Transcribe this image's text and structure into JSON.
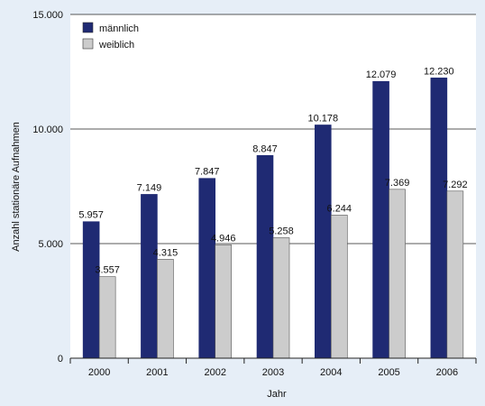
{
  "chart_data": {
    "type": "bar",
    "categories": [
      "2000",
      "2001",
      "2002",
      "2003",
      "2004",
      "2005",
      "2006"
    ],
    "series": [
      {
        "name": "männlich",
        "color": "#1f2a73",
        "values": [
          5957,
          7149,
          7847,
          8847,
          10178,
          12079,
          12230
        ],
        "labels": [
          "5.957",
          "7.149",
          "7.847",
          "8.847",
          "10.178",
          "12.079",
          "12.230"
        ]
      },
      {
        "name": "weiblich",
        "color": "#cccccc",
        "values": [
          3557,
          4315,
          4946,
          5258,
          6244,
          7369,
          7292
        ],
        "labels": [
          "3.557",
          "4.315",
          "4.946",
          "5.258",
          "6.244",
          "7.369",
          "7.292"
        ]
      }
    ],
    "xlabel": "Jahr",
    "ylabel": "Anzahl stationäre Aufnahmen",
    "ylim": [
      0,
      15000
    ],
    "yticks": [
      0,
      5000,
      10000,
      15000
    ],
    "ytick_labels": [
      "0",
      "5.000",
      "10.000",
      "15.000"
    ],
    "grid": true,
    "legend_position": "top-left"
  }
}
